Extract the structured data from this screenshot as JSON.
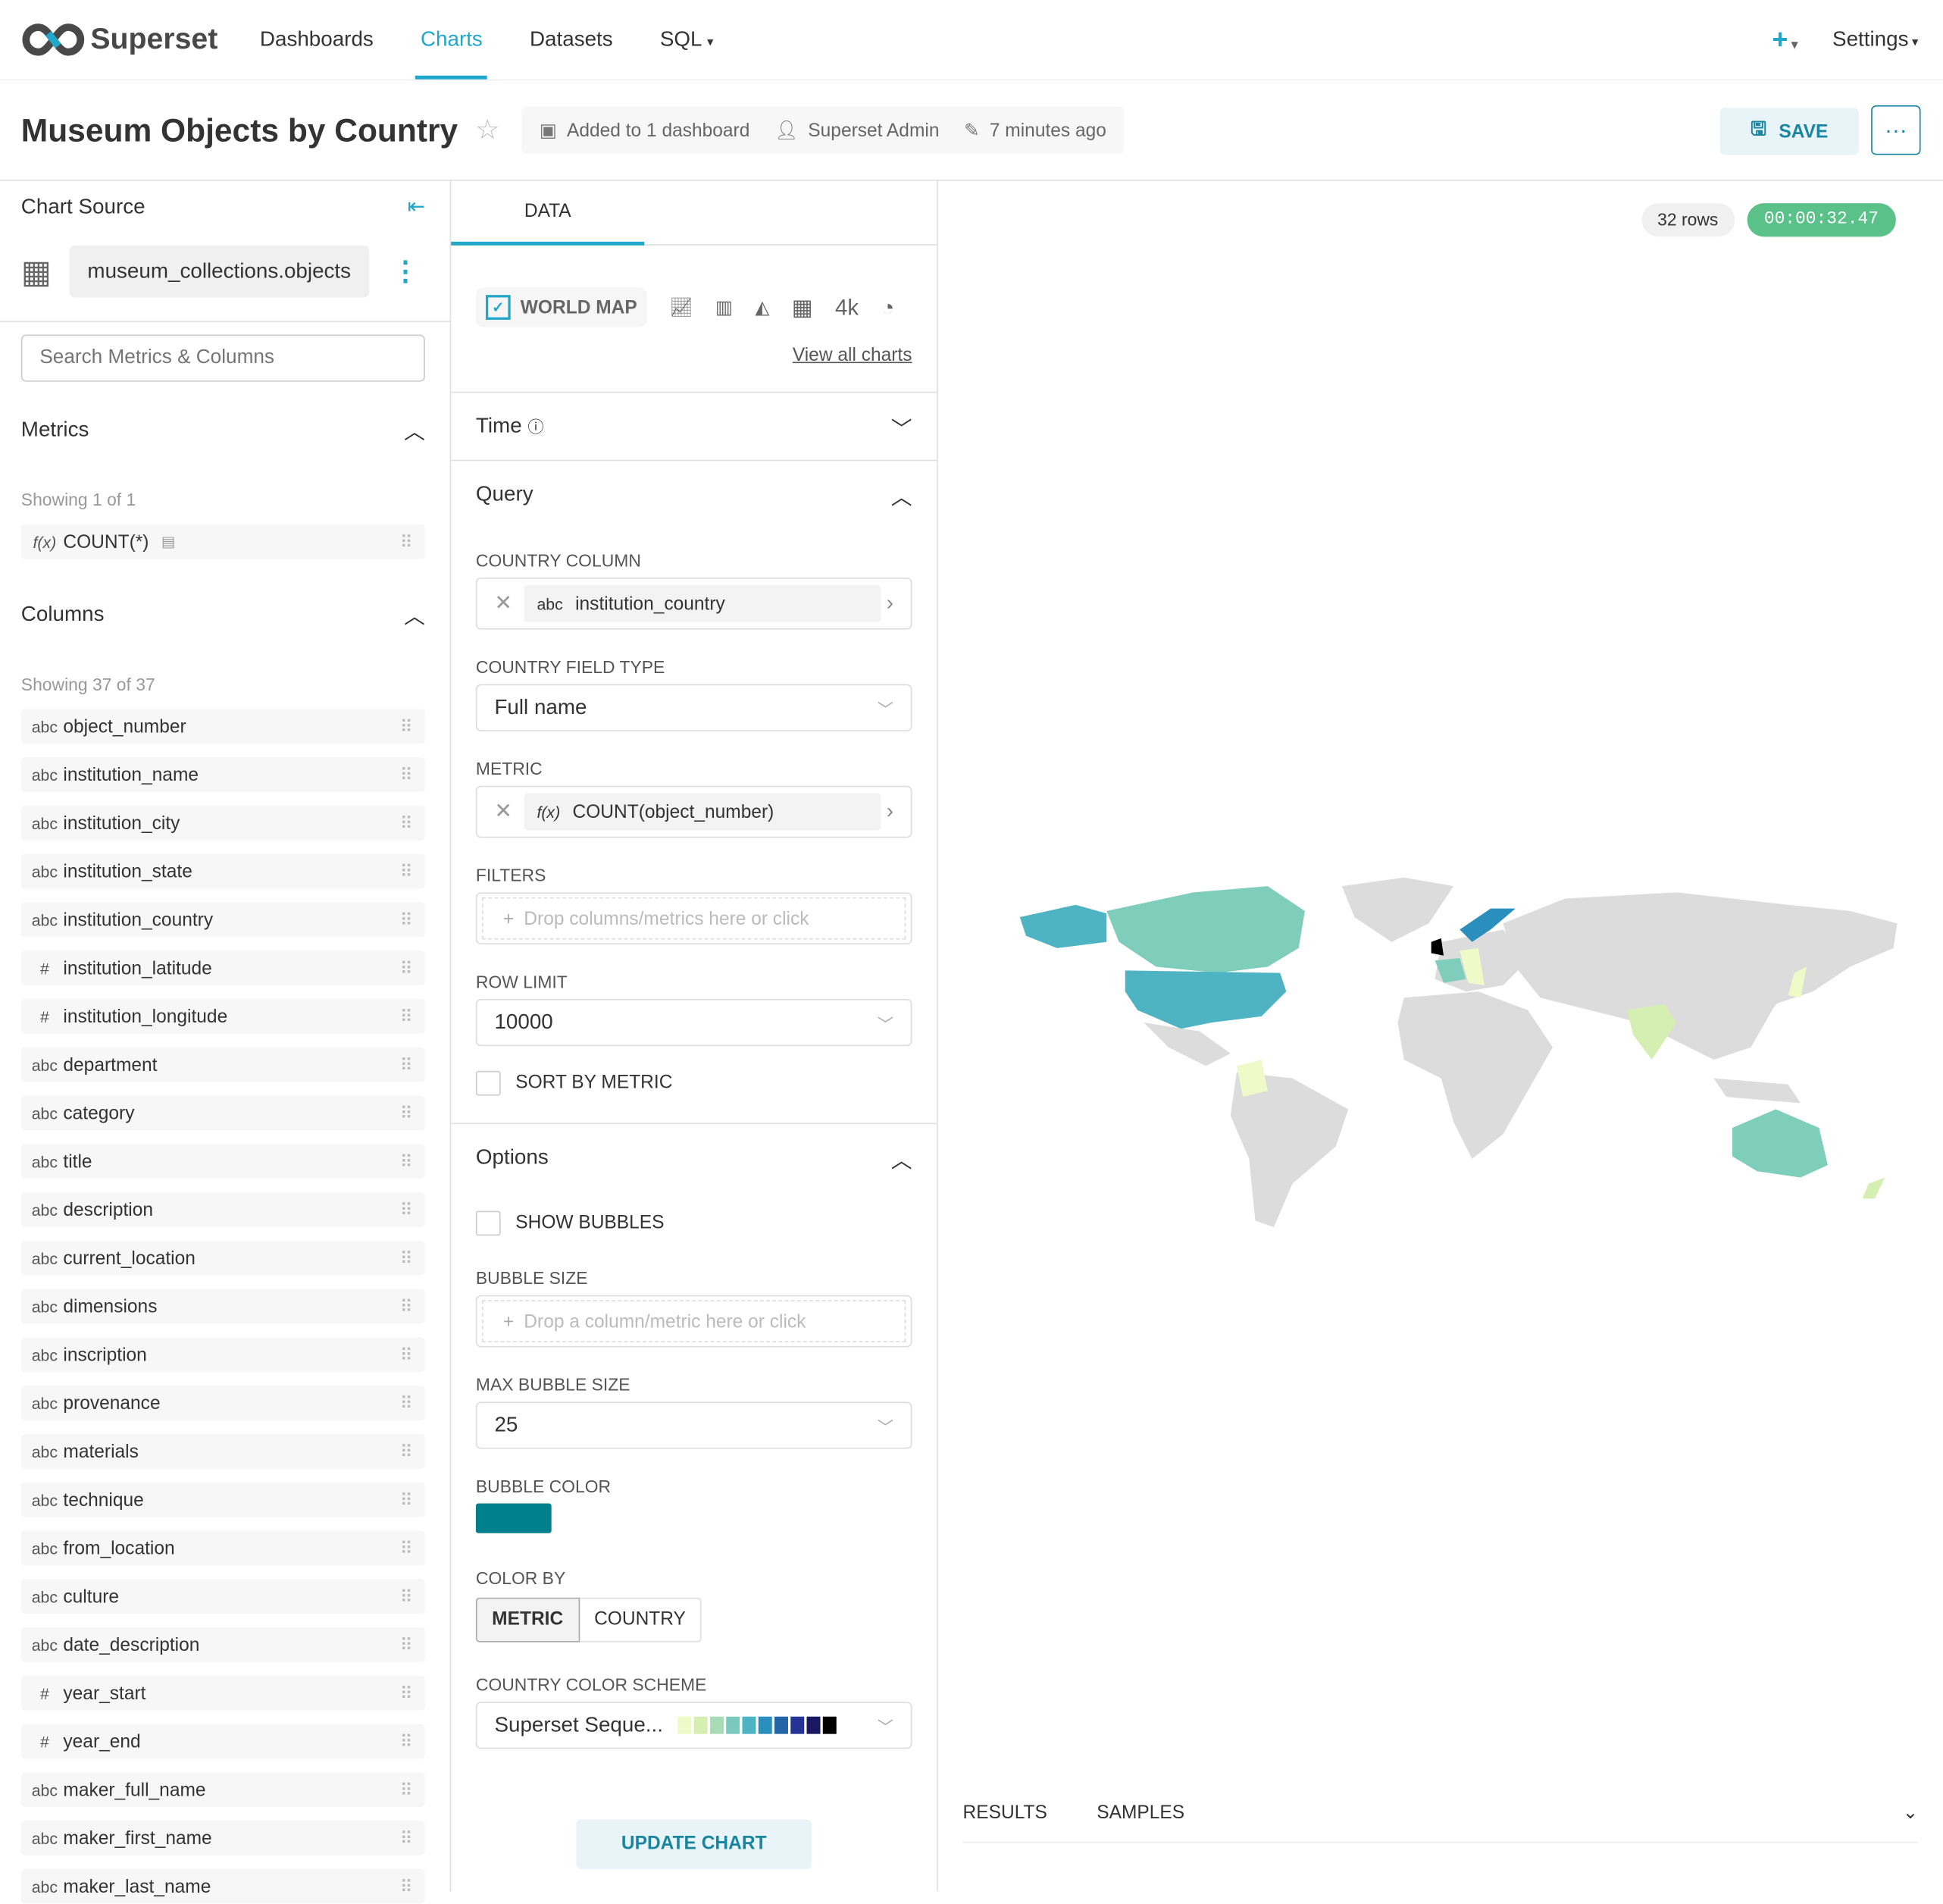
{
  "nav": {
    "brand": "Superset",
    "items": [
      "Dashboards",
      "Charts",
      "Datasets",
      "SQL"
    ],
    "active": "Charts",
    "plus": "+",
    "settings": "Settings"
  },
  "header": {
    "title": "Museum Objects by Country",
    "dashboards": "Added to 1 dashboard",
    "owner": "Superset Admin",
    "modified": "7 minutes ago",
    "save": "SAVE",
    "more": "···"
  },
  "source": {
    "heading": "Chart Source",
    "dataset": "museum_collections.objects",
    "search_placeholder": "Search Metrics & Columns"
  },
  "metrics": {
    "heading": "Metrics",
    "showing": "Showing 1 of 1",
    "items": [
      {
        "type": "f(x)",
        "name": "COUNT(*)"
      }
    ]
  },
  "columns": {
    "heading": "Columns",
    "showing": "Showing 37 of 37",
    "items": [
      {
        "type": "abc",
        "name": "object_number"
      },
      {
        "type": "abc",
        "name": "institution_name"
      },
      {
        "type": "abc",
        "name": "institution_city"
      },
      {
        "type": "abc",
        "name": "institution_state"
      },
      {
        "type": "abc",
        "name": "institution_country"
      },
      {
        "type": "#",
        "name": "institution_latitude"
      },
      {
        "type": "#",
        "name": "institution_longitude"
      },
      {
        "type": "abc",
        "name": "department"
      },
      {
        "type": "abc",
        "name": "category"
      },
      {
        "type": "abc",
        "name": "title"
      },
      {
        "type": "abc",
        "name": "description"
      },
      {
        "type": "abc",
        "name": "current_location"
      },
      {
        "type": "abc",
        "name": "dimensions"
      },
      {
        "type": "abc",
        "name": "inscription"
      },
      {
        "type": "abc",
        "name": "provenance"
      },
      {
        "type": "abc",
        "name": "materials"
      },
      {
        "type": "abc",
        "name": "technique"
      },
      {
        "type": "abc",
        "name": "from_location"
      },
      {
        "type": "abc",
        "name": "culture"
      },
      {
        "type": "abc",
        "name": "date_description"
      },
      {
        "type": "#",
        "name": "year_start"
      },
      {
        "type": "#",
        "name": "year_end"
      },
      {
        "type": "abc",
        "name": "maker_full_name"
      },
      {
        "type": "abc",
        "name": "maker_first_name"
      },
      {
        "type": "abc",
        "name": "maker_last_name"
      }
    ]
  },
  "panel": {
    "tab": "DATA",
    "viz": "WORLD MAP",
    "big_number": "4k",
    "view_all": "View all charts",
    "time": "Time",
    "query": "Query",
    "options": "Options",
    "country_column_label": "COUNTRY COLUMN",
    "country_column": {
      "type": "abc",
      "value": "institution_country"
    },
    "country_field_type_label": "COUNTRY FIELD TYPE",
    "country_field_type": "Full name",
    "metric_label": "METRIC",
    "metric": {
      "type": "f(x)",
      "value": "COUNT(object_number)"
    },
    "filters_label": "FILTERS",
    "filters_placeholder": "Drop columns/metrics here or click",
    "row_limit_label": "ROW LIMIT",
    "row_limit": "10000",
    "sort_by_metric": "SORT BY METRIC",
    "sort_by_metric_checked": false,
    "show_bubbles": "SHOW BUBBLES",
    "show_bubbles_checked": false,
    "bubble_size_label": "BUBBLE SIZE",
    "bubble_size_placeholder": "Drop a column/metric here or click",
    "max_bubble_size_label": "MAX BUBBLE SIZE",
    "max_bubble_size": "25",
    "bubble_color_label": "BUBBLE COLOR",
    "bubble_color": "#00808a",
    "color_by_label": "COLOR BY",
    "color_by": [
      "METRIC",
      "COUNTRY"
    ],
    "color_by_selected": "METRIC",
    "scheme_label": "COUNTRY COLOR SCHEME",
    "scheme": "Superset Seque...",
    "scheme_colors": [
      "#f0f9c8",
      "#d5efb3",
      "#a8dcb4",
      "#7bc8be",
      "#4eb3c3",
      "#2a8fbd",
      "#2464a8",
      "#253494",
      "#1b1760",
      "#000000"
    ],
    "update": "UPDATE CHART"
  },
  "result": {
    "rows": "32 rows",
    "timer": "00:00:32.47",
    "tabs": [
      "RESULTS",
      "SAMPLES"
    ]
  },
  "colors": {
    "accent": "#20a7c9",
    "success": "#5ac189",
    "map_empty": "#dcdcdc"
  }
}
